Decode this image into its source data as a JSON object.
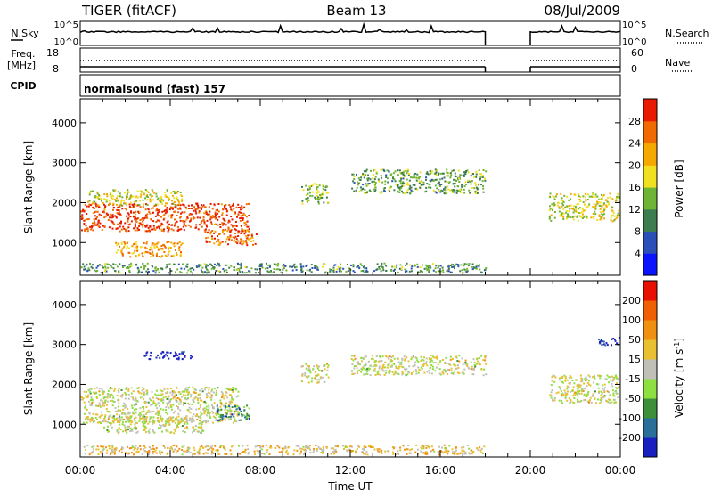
{
  "header": {
    "station": "TIGER (fitACF)",
    "beam": "Beam 13",
    "date": "08/Jul/2009"
  },
  "strips": {
    "nsky_label": "N.Sky",
    "nsky_ticks": [
      "10^5",
      "10^0"
    ],
    "nsearch_label": "N.Search",
    "nsearch_ticks": [
      "10^5",
      "10^0"
    ],
    "freq_label_1": "Freq.",
    "freq_label_2": "[MHz]",
    "freq_ticks": [
      "18",
      "8"
    ],
    "nave_label": "Nave",
    "nave_ticks": [
      "60",
      "0"
    ],
    "cpid_label": "CPID",
    "cpid_text": "normalsound (fast) 157"
  },
  "chart_data": [
    {
      "type": "heatmap",
      "title": "",
      "xlabel": "Time UT",
      "ylabel": "Slant Range [km]",
      "xlim_hours": [
        0,
        24
      ],
      "ylim_km": [
        180,
        4600
      ],
      "x_ticks": [
        "00:00",
        "04:00",
        "08:00",
        "12:00",
        "16:00",
        "20:00",
        "00:00"
      ],
      "y_ticks": [
        "1000",
        "2000",
        "3000",
        "4000"
      ],
      "data_gap_hours": [
        18.0,
        20.0
      ],
      "colorbar": {
        "label": "Power [dB]",
        "ticks": [
          "4",
          "8",
          "12",
          "16",
          "20",
          "24",
          "28"
        ],
        "colors": [
          "#0a14ff",
          "#2a4fb8",
          "#3e7d4f",
          "#6fb535",
          "#f0e020",
          "#f5a800",
          "#f06a00",
          "#e81a00"
        ]
      },
      "regions": [
        {
          "t0": 0.0,
          "t1": 7.5,
          "r_center": 1650,
          "r_halfwidth": 350,
          "level": 0.9
        },
        {
          "t0": 0.3,
          "t1": 4.5,
          "r_center": 2150,
          "r_halfwidth": 200,
          "level": 0.55
        },
        {
          "t0": 1.5,
          "t1": 4.5,
          "r_center": 850,
          "r_halfwidth": 200,
          "level": 0.7
        },
        {
          "t0": 5.5,
          "t1": 7.8,
          "r_center": 1150,
          "r_halfwidth": 200,
          "level": 0.8
        },
        {
          "t0": 9.8,
          "t1": 11.0,
          "r_center": 2250,
          "r_halfwidth": 250,
          "level": 0.45
        },
        {
          "t0": 12.0,
          "t1": 18.0,
          "r_center": 2550,
          "r_halfwidth": 300,
          "level": 0.4
        },
        {
          "t0": 20.8,
          "t1": 24.0,
          "r_center": 1900,
          "r_halfwidth": 350,
          "level": 0.55
        },
        {
          "t0": 0.0,
          "t1": 18.0,
          "r_center": 380,
          "r_halfwidth": 120,
          "level": 0.35
        }
      ]
    },
    {
      "type": "heatmap",
      "title": "",
      "xlabel": "Time UT",
      "ylabel": "Slant Range [km]",
      "xlim_hours": [
        0,
        24
      ],
      "ylim_km": [
        180,
        4600
      ],
      "x_ticks": [
        "00:00",
        "04:00",
        "08:00",
        "12:00",
        "16:00",
        "20:00",
        "00:00"
      ],
      "y_ticks": [
        "1000",
        "2000",
        "3000",
        "4000"
      ],
      "data_gap_hours": [
        18.0,
        20.0
      ],
      "colorbar": {
        "label": "Velocity [m s^-1]",
        "ticks": [
          "200",
          "100",
          "50",
          "15",
          "-15",
          "-50",
          "-100",
          "-200"
        ],
        "colors": [
          "#1a20c0",
          "#2a6f9a",
          "#3e8f3a",
          "#8ee040",
          "#c0c0b8",
          "#e8c030",
          "#f09010",
          "#f06000",
          "#e81000"
        ]
      },
      "regions": [
        {
          "t0": 0.0,
          "t1": 7.0,
          "r_center": 1500,
          "r_halfwidth": 450,
          "level": 0.5
        },
        {
          "t0": 1.0,
          "t1": 5.5,
          "r_center": 1000,
          "r_halfwidth": 200,
          "level": 0.5
        },
        {
          "t0": 2.8,
          "t1": 5.0,
          "r_center": 2750,
          "r_halfwidth": 100,
          "level": 0.0
        },
        {
          "t0": 6.0,
          "t1": 7.5,
          "r_center": 1300,
          "r_halfwidth": 200,
          "level": 0.25
        },
        {
          "t0": 9.8,
          "t1": 11.0,
          "r_center": 2300,
          "r_halfwidth": 250,
          "level": 0.5
        },
        {
          "t0": 12.0,
          "t1": 18.0,
          "r_center": 2500,
          "r_halfwidth": 250,
          "level": 0.5
        },
        {
          "t0": 20.8,
          "t1": 24.0,
          "r_center": 1900,
          "r_halfwidth": 350,
          "level": 0.5
        },
        {
          "t0": 23.0,
          "t1": 24.0,
          "r_center": 3100,
          "r_halfwidth": 100,
          "level": 0.0
        },
        {
          "t0": 0.0,
          "t1": 18.0,
          "r_center": 380,
          "r_halfwidth": 120,
          "level": 0.6
        }
      ]
    }
  ]
}
